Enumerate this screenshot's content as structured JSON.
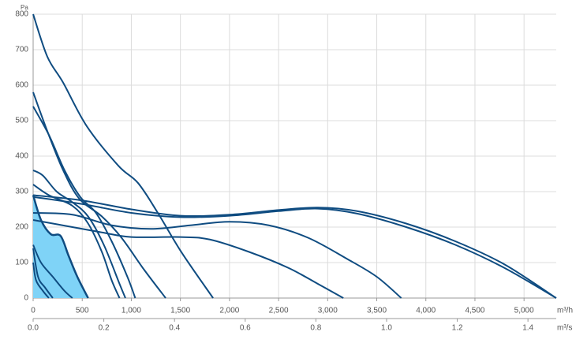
{
  "chart_data": {
    "type": "line",
    "y_label": "Pa",
    "x_label": "m³/h",
    "x2_label": "m³/s",
    "xlim": [
      0,
      5328
    ],
    "xticks": [
      0,
      500,
      {
        "value": 1000,
        "label": "1,000"
      },
      {
        "value": 1500,
        "label": "1,500"
      },
      {
        "value": 2000,
        "label": "2,000"
      },
      {
        "value": 2500,
        "label": "2,500"
      },
      {
        "value": 3000,
        "label": "3,000"
      },
      {
        "value": 3500,
        "label": "3,500"
      },
      {
        "value": 4000,
        "label": "4,000"
      },
      {
        "value": 4500,
        "label": "4,500"
      },
      {
        "value": 5000,
        "label": "5,000"
      }
    ],
    "x2lim": [
      0,
      1.48
    ],
    "x2ticks": [
      {
        "value": 0,
        "label": "0.0"
      },
      0.2,
      0.4,
      0.6,
      0.8,
      {
        "value": 1,
        "label": "1.0"
      },
      1.2,
      1.4
    ],
    "ylim": [
      0,
      800
    ],
    "yticks": [
      0,
      100,
      200,
      300,
      400,
      500,
      600,
      700,
      800
    ],
    "grid": true,
    "series": [
      {
        "color": "#0f4c81",
        "area_color": "#7fd3f7",
        "area": true,
        "x": [
          0,
          80,
          180,
          280,
          360,
          450,
          560
        ],
        "values": [
          290,
          220,
          180,
          175,
          120,
          60,
          0
        ]
      },
      {
        "color": "#0f4c81",
        "x": [
          0,
          145,
          306,
          547,
          868,
          1069,
          1270,
          1511,
          1833
        ],
        "values": [
          800,
          680,
          607,
          484,
          373,
          324,
          240,
          129,
          0
        ]
      },
      {
        "color": "#0f4c81",
        "x": [
          0,
          145,
          306,
          470,
          700,
          900,
          1130,
          1350
        ],
        "values": [
          580,
          470,
          360,
          280,
          230,
          170,
          80,
          0
        ]
      },
      {
        "color": "#0f4c81",
        "x": [
          0,
          160,
          320,
          480,
          640,
          800,
          960,
          1040
        ],
        "values": [
          540,
          460,
          360,
          285,
          240,
          160,
          60,
          0
        ]
      },
      {
        "color": "#0f4c81",
        "x": [
          0,
          100,
          240,
          400,
          560,
          720,
          880,
          940
        ],
        "values": [
          360,
          345,
          300,
          270,
          230,
          150,
          40,
          0
        ]
      },
      {
        "color": "#0f4c81",
        "x": [
          0,
          160,
          400,
          560,
          700,
          800,
          880
        ],
        "values": [
          320,
          290,
          260,
          210,
          130,
          50,
          0
        ]
      },
      {
        "color": "#0f4c81",
        "x": [
          0,
          500,
          1000,
          1500,
          2000,
          2500,
          2900,
          3300,
          3800,
          4300,
          4800,
          5328
        ],
        "values": [
          290,
          275,
          250,
          232,
          235,
          248,
          255,
          245,
          210,
          160,
          95,
          0
        ]
      },
      {
        "color": "#0f4c81",
        "x": [
          0,
          500,
          1000,
          1500,
          2000,
          2500,
          2900,
          3300,
          3800,
          4300,
          4800,
          5328
        ],
        "values": [
          285,
          265,
          240,
          228,
          232,
          245,
          252,
          238,
          200,
          150,
          85,
          0
        ]
      },
      {
        "color": "#0f4c81",
        "x": [
          0,
          400,
          800,
          1200,
          1600,
          2000,
          2400,
          2800,
          3200,
          3500,
          3750
        ],
        "values": [
          240,
          235,
          205,
          195,
          205,
          215,
          205,
          170,
          110,
          60,
          0
        ]
      },
      {
        "color": "#0f4c81",
        "x": [
          0,
          300,
          700,
          1000,
          1500,
          1800,
          2200,
          2600,
          2900,
          3160
        ],
        "values": [
          220,
          205,
          185,
          172,
          172,
          165,
          130,
          85,
          40,
          0
        ]
      },
      {
        "color": "#0f4c81",
        "x": [
          0,
          80,
          200,
          320,
          400
        ],
        "values": [
          150,
          100,
          60,
          20,
          0
        ]
      },
      {
        "color": "#0f4c81",
        "x": [
          0,
          50,
          120,
          200
        ],
        "values": [
          140,
          60,
          30,
          0
        ]
      },
      {
        "color": "#0f4c81",
        "x": [
          0,
          30,
          100,
          160
        ],
        "values": [
          100,
          50,
          20,
          0
        ]
      }
    ]
  }
}
